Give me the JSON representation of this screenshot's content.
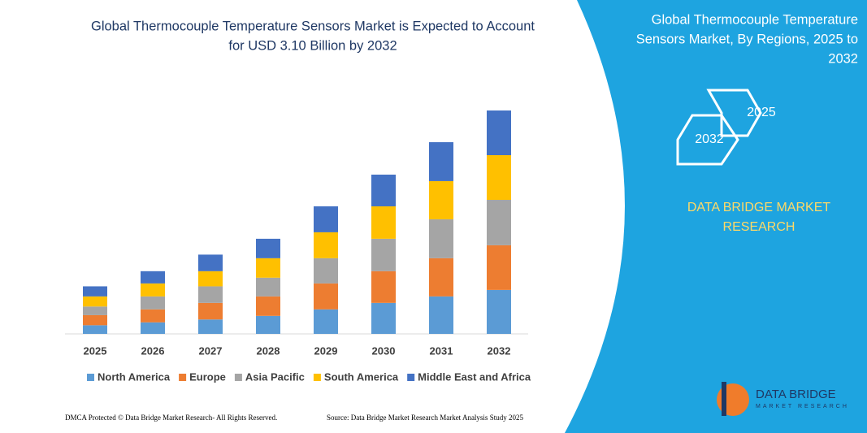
{
  "chart_data": {
    "type": "stacked-bar",
    "title": [
      "Global Thermocouple Temperature Sensors Market is Expected to Account",
      "for USD 3.10 Billion by 2032"
    ],
    "categories": [
      "2025",
      "2026",
      "2027",
      "2028",
      "2029",
      "2030",
      "2031",
      "2032"
    ],
    "series": [
      {
        "name": "North America",
        "color": "#5b9bd5",
        "values": [
          0.12,
          0.16,
          0.2,
          0.25,
          0.34,
          0.43,
          0.52,
          0.61
        ]
      },
      {
        "name": "Europe",
        "color": "#ed7d31",
        "values": [
          0.14,
          0.18,
          0.23,
          0.27,
          0.36,
          0.44,
          0.53,
          0.62
        ]
      },
      {
        "name": "Asia Pacific",
        "color": "#a5a5a5",
        "values": [
          0.12,
          0.18,
          0.23,
          0.26,
          0.35,
          0.45,
          0.54,
          0.63
        ]
      },
      {
        "name": "South America",
        "color": "#ffc000",
        "values": [
          0.14,
          0.18,
          0.21,
          0.27,
          0.36,
          0.45,
          0.53,
          0.62
        ]
      },
      {
        "name": "Middle East and Africa",
        "color": "#4472c4",
        "values": [
          0.14,
          0.17,
          0.23,
          0.27,
          0.36,
          0.44,
          0.54,
          0.62
        ]
      }
    ],
    "ylim": [
      0,
      3.1
    ]
  },
  "panel": {
    "title": [
      "Global Thermocouple Temperature",
      "Sensors Market, By Regions, 2025 to",
      "2032"
    ],
    "hex_labels": [
      "2025",
      "2032"
    ],
    "brand": [
      "DATA BRIDGE MARKET",
      "RESEARCH"
    ],
    "logo": [
      "DATA BRIDGE",
      "MARKET RESEARCH"
    ]
  },
  "footer": {
    "left": "DMCA Protected © Data Bridge Market Research- All Rights Reserved.",
    "right": "Source: Data Bridge Market Research Market Analysis Study 2025"
  }
}
